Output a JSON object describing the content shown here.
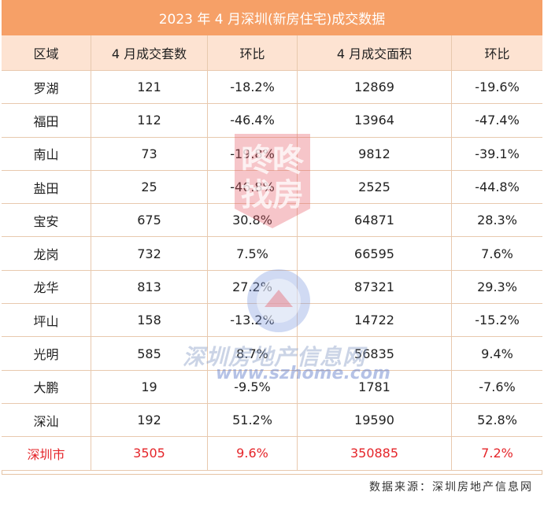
{
  "title": "2023 年 4 月深圳(新房住宅)成交数据",
  "headers": [
    "区域",
    "4 月成交套数",
    "环比",
    "4 月成交面积",
    "环比"
  ],
  "rows": [
    [
      "罗湖",
      "121",
      "-18.2%",
      "12869",
      "-19.6%"
    ],
    [
      "福田",
      "112",
      "-46.4%",
      "13964",
      "-47.4%"
    ],
    [
      "南山",
      "73",
      "-19.8%",
      "9812",
      "-39.1%"
    ],
    [
      "盐田",
      "25",
      "-46.8%",
      "2525",
      "-44.8%"
    ],
    [
      "宝安",
      "675",
      "30.8%",
      "64871",
      "28.3%"
    ],
    [
      "龙岗",
      "732",
      "7.5%",
      "66595",
      "7.6%"
    ],
    [
      "龙华",
      "813",
      "27.2%",
      "87321",
      "29.3%"
    ],
    [
      "坪山",
      "158",
      "-13.2%",
      "14722",
      "-15.2%"
    ],
    [
      "光明",
      "585",
      "8.7%",
      "56835",
      "9.4%"
    ],
    [
      "大鹏",
      "19",
      "-9.5%",
      "1781",
      "-7.6%"
    ],
    [
      "深汕",
      "192",
      "51.2%",
      "19590",
      "52.8%"
    ]
  ],
  "total": [
    "深圳市",
    "3505",
    "9.6%",
    "350885",
    "7.2%"
  ],
  "source": "数据来源：深圳房地产信息网",
  "watermarks": {
    "stamp_text": "咚咚找房",
    "site_name": "深圳房地产信息网",
    "site_url": "www.szhome.com"
  },
  "colors": {
    "title_bg": "#f6a067",
    "header_bg": "#fde3d2",
    "total_text": "#e5252a"
  }
}
